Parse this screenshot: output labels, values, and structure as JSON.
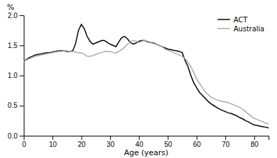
{
  "chart_data": {
    "type": "line",
    "xlabel": "Age (years)",
    "ylabel": "%",
    "xlim": [
      0,
      85
    ],
    "ylim": [
      0.0,
      2.0
    ],
    "xticks": [
      0,
      10,
      20,
      30,
      40,
      50,
      60,
      70,
      80
    ],
    "yticks": [
      {
        "value": 0.0,
        "label": "0.0"
      },
      0.5,
      {
        "value": 1.0,
        "label": "1.0"
      },
      1.5,
      {
        "value": 2.0,
        "label": "2.0"
      }
    ],
    "grid": false,
    "legend": "upper right",
    "x": [
      0,
      1,
      2,
      3,
      4,
      5,
      6,
      7,
      8,
      9,
      10,
      11,
      12,
      13,
      14,
      15,
      16,
      17,
      18,
      19,
      20,
      21,
      22,
      23,
      24,
      25,
      26,
      27,
      28,
      29,
      30,
      31,
      32,
      33,
      34,
      35,
      36,
      37,
      38,
      39,
      40,
      41,
      42,
      43,
      44,
      45,
      46,
      47,
      48,
      49,
      50,
      51,
      52,
      53,
      54,
      55,
      56,
      57,
      58,
      59,
      60,
      61,
      62,
      63,
      64,
      65,
      66,
      67,
      68,
      69,
      70,
      71,
      72,
      73,
      74,
      75,
      76,
      77,
      78,
      79,
      80,
      81,
      82,
      83,
      84,
      85
    ],
    "series": [
      {
        "name": "ACT",
        "color": "#000000",
        "values": [
          1.23,
          1.27,
          1.3,
          1.32,
          1.34,
          1.35,
          1.36,
          1.37,
          1.38,
          1.38,
          1.39,
          1.4,
          1.41,
          1.41,
          1.41,
          1.4,
          1.4,
          1.41,
          1.53,
          1.75,
          1.85,
          1.78,
          1.65,
          1.57,
          1.52,
          1.54,
          1.56,
          1.58,
          1.58,
          1.55,
          1.52,
          1.5,
          1.48,
          1.56,
          1.63,
          1.65,
          1.61,
          1.55,
          1.52,
          1.54,
          1.57,
          1.58,
          1.58,
          1.56,
          1.55,
          1.54,
          1.52,
          1.5,
          1.48,
          1.46,
          1.44,
          1.43,
          1.42,
          1.41,
          1.4,
          1.38,
          1.25,
          1.15,
          1.0,
          0.88,
          0.8,
          0.72,
          0.67,
          0.62,
          0.57,
          0.53,
          0.5,
          0.47,
          0.44,
          0.42,
          0.4,
          0.38,
          0.37,
          0.35,
          0.33,
          0.3,
          0.28,
          0.25,
          0.23,
          0.2,
          0.18,
          0.17,
          0.16,
          0.15,
          0.14,
          0.13
        ]
      },
      {
        "name": "Australia",
        "color": "#aaaaaa",
        "values": [
          1.23,
          1.26,
          1.28,
          1.3,
          1.32,
          1.33,
          1.34,
          1.35,
          1.36,
          1.37,
          1.38,
          1.39,
          1.4,
          1.4,
          1.41,
          1.41,
          1.4,
          1.4,
          1.39,
          1.38,
          1.38,
          1.35,
          1.32,
          1.32,
          1.33,
          1.35,
          1.37,
          1.38,
          1.4,
          1.4,
          1.4,
          1.38,
          1.37,
          1.4,
          1.43,
          1.47,
          1.52,
          1.56,
          1.58,
          1.57,
          1.55,
          1.57,
          1.58,
          1.57,
          1.55,
          1.53,
          1.52,
          1.5,
          1.48,
          1.44,
          1.42,
          1.4,
          1.38,
          1.36,
          1.34,
          1.32,
          1.28,
          1.22,
          1.15,
          1.05,
          0.95,
          0.87,
          0.8,
          0.73,
          0.68,
          0.64,
          0.62,
          0.6,
          0.58,
          0.57,
          0.56,
          0.55,
          0.53,
          0.51,
          0.49,
          0.47,
          0.44,
          0.4,
          0.36,
          0.32,
          0.29,
          0.27,
          0.25,
          0.23,
          0.21,
          0.2
        ]
      }
    ]
  }
}
